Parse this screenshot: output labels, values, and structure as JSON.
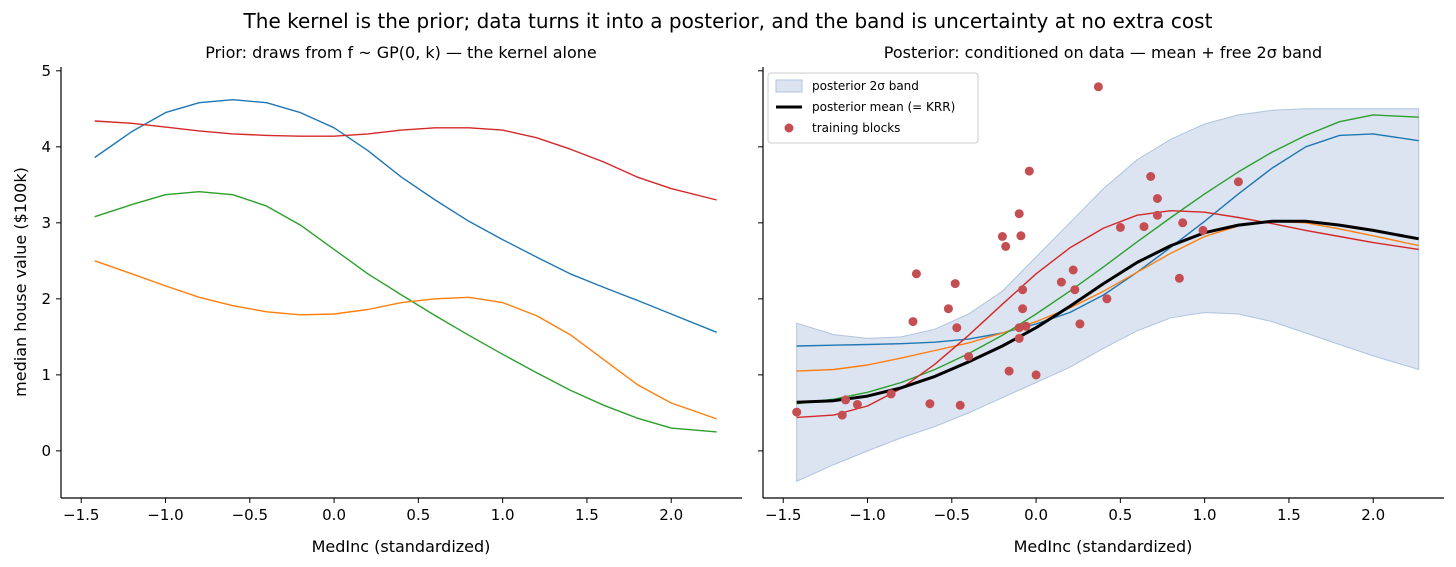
{
  "figure": {
    "suptitle": "The kernel is the prior; data turns it into a posterior, and the band is uncertainty at no extra cost",
    "colors": {
      "blue": "#1f77b4",
      "orange": "#ff7f0e",
      "green": "#2ca02c",
      "red": "#d62728",
      "mean": "#000000",
      "band": "#b0c4de",
      "points": "#c44e52"
    }
  },
  "chart_data": [
    {
      "type": "line",
      "title": "Prior: draws from f ~ GP(0, k) — the kernel alone",
      "xlabel": "MedInc (standardized)",
      "ylabel": "median house value ($100k)",
      "xlim": [
        -1.62,
        2.42
      ],
      "ylim": [
        -0.62,
        5.05
      ],
      "xticks": [
        -1.5,
        -1.0,
        -0.5,
        0.0,
        0.5,
        1.0,
        1.5,
        2.0
      ],
      "xtick_labels": [
        "−1.5",
        "−1.0",
        "−0.5",
        "0.0",
        "0.5",
        "1.0",
        "1.5",
        "2.0"
      ],
      "yticks": [
        0,
        1,
        2,
        3,
        4,
        5
      ],
      "ytick_labels": [
        "0",
        "1",
        "2",
        "3",
        "4",
        "5"
      ],
      "grid": false,
      "series": [
        {
          "color": "blue",
          "x": [
            -1.42,
            -1.2,
            -1.0,
            -0.8,
            -0.6,
            -0.4,
            -0.2,
            0.0,
            0.2,
            0.4,
            0.6,
            0.8,
            1.0,
            1.2,
            1.4,
            1.6,
            1.8,
            2.0,
            2.27
          ],
          "y": [
            3.86,
            4.2,
            4.45,
            4.58,
            4.62,
            4.58,
            4.45,
            4.25,
            3.95,
            3.6,
            3.3,
            3.02,
            2.78,
            2.55,
            2.33,
            2.15,
            1.98,
            1.8,
            1.56
          ]
        },
        {
          "color": "red",
          "x": [
            -1.42,
            -1.2,
            -1.0,
            -0.8,
            -0.6,
            -0.4,
            -0.2,
            0.0,
            0.2,
            0.4,
            0.6,
            0.8,
            1.0,
            1.2,
            1.4,
            1.6,
            1.8,
            2.0,
            2.27
          ],
          "y": [
            4.34,
            4.31,
            4.26,
            4.21,
            4.17,
            4.15,
            4.14,
            4.14,
            4.17,
            4.22,
            4.25,
            4.25,
            4.22,
            4.12,
            3.97,
            3.8,
            3.6,
            3.45,
            3.3
          ]
        },
        {
          "color": "green",
          "x": [
            -1.42,
            -1.2,
            -1.0,
            -0.8,
            -0.6,
            -0.4,
            -0.2,
            0.0,
            0.2,
            0.4,
            0.6,
            0.8,
            1.0,
            1.2,
            1.4,
            1.6,
            1.8,
            2.0,
            2.27
          ],
          "y": [
            3.08,
            3.24,
            3.37,
            3.41,
            3.37,
            3.22,
            2.97,
            2.65,
            2.33,
            2.05,
            1.78,
            1.52,
            1.27,
            1.03,
            0.8,
            0.6,
            0.43,
            0.3,
            0.25
          ]
        },
        {
          "color": "orange",
          "x": [
            -1.42,
            -1.2,
            -1.0,
            -0.8,
            -0.6,
            -0.4,
            -0.2,
            0.0,
            0.2,
            0.4,
            0.6,
            0.8,
            1.0,
            1.2,
            1.4,
            1.6,
            1.8,
            2.0,
            2.27
          ],
          "y": [
            2.5,
            2.33,
            2.17,
            2.02,
            1.91,
            1.83,
            1.79,
            1.8,
            1.86,
            1.95,
            2.0,
            2.02,
            1.95,
            1.78,
            1.53,
            1.2,
            0.87,
            0.63,
            0.42
          ]
        }
      ]
    },
    {
      "type": "line",
      "title": "Posterior: conditioned on data — mean + free 2σ band",
      "xlabel": "MedInc (standardized)",
      "xlim": [
        -1.62,
        2.42
      ],
      "ylim": [
        -0.62,
        5.05
      ],
      "xticks": [
        -1.5,
        -1.0,
        -0.5,
        0.0,
        0.5,
        1.0,
        1.5,
        2.0
      ],
      "xtick_labels": [
        "−1.5",
        "−1.0",
        "−0.5",
        "0.0",
        "0.5",
        "1.0",
        "1.5",
        "2.0"
      ],
      "yticks": [
        0,
        1,
        2,
        3,
        4,
        5
      ],
      "ytick_labels": [
        "",
        "",
        "",
        "",
        "",
        ""
      ],
      "grid": false,
      "legend_position": "top-left",
      "legend": [
        {
          "kind": "band",
          "label": "posterior 2σ band"
        },
        {
          "kind": "mean",
          "label": "posterior mean (= KRR)"
        },
        {
          "kind": "points",
          "label": "training blocks"
        }
      ],
      "band": {
        "x": [
          -1.42,
          -1.2,
          -1.0,
          -0.8,
          -0.6,
          -0.4,
          -0.2,
          0.0,
          0.2,
          0.4,
          0.6,
          0.8,
          1.0,
          1.2,
          1.4,
          1.6,
          1.8,
          2.0,
          2.27
        ],
        "lower": [
          -0.4,
          -0.18,
          0.0,
          0.17,
          0.32,
          0.5,
          0.7,
          0.9,
          1.1,
          1.35,
          1.58,
          1.75,
          1.82,
          1.8,
          1.7,
          1.55,
          1.4,
          1.25,
          1.07
        ],
        "upper": [
          1.68,
          1.53,
          1.48,
          1.5,
          1.6,
          1.8,
          2.1,
          2.55,
          3.0,
          3.45,
          3.83,
          4.1,
          4.3,
          4.42,
          4.48,
          4.5,
          4.5,
          4.5,
          4.5
        ]
      },
      "mean": {
        "x": [
          -1.42,
          -1.2,
          -1.0,
          -0.8,
          -0.6,
          -0.4,
          -0.2,
          0.0,
          0.2,
          0.4,
          0.6,
          0.8,
          1.0,
          1.2,
          1.4,
          1.6,
          1.8,
          2.0,
          2.27
        ],
        "y": [
          0.64,
          0.66,
          0.72,
          0.83,
          0.98,
          1.17,
          1.38,
          1.62,
          1.9,
          2.2,
          2.48,
          2.7,
          2.87,
          2.97,
          3.02,
          3.02,
          2.97,
          2.9,
          2.79
        ]
      },
      "series": [
        {
          "color": "blue",
          "x": [
            -1.42,
            -1.2,
            -1.0,
            -0.8,
            -0.6,
            -0.4,
            -0.2,
            0.0,
            0.2,
            0.4,
            0.6,
            0.8,
            1.0,
            1.2,
            1.4,
            1.6,
            1.8,
            2.0,
            2.27
          ],
          "y": [
            1.38,
            1.39,
            1.4,
            1.41,
            1.43,
            1.47,
            1.55,
            1.67,
            1.82,
            2.05,
            2.35,
            2.68,
            3.02,
            3.38,
            3.72,
            4.0,
            4.15,
            4.17,
            4.08
          ]
        },
        {
          "color": "orange",
          "x": [
            -1.42,
            -1.2,
            -1.0,
            -0.8,
            -0.6,
            -0.4,
            -0.2,
            0.0,
            0.2,
            0.4,
            0.6,
            0.8,
            1.0,
            1.2,
            1.4,
            1.6,
            1.8,
            2.0,
            2.27
          ],
          "y": [
            1.05,
            1.07,
            1.13,
            1.22,
            1.32,
            1.42,
            1.55,
            1.7,
            1.88,
            2.1,
            2.35,
            2.6,
            2.82,
            2.96,
            3.02,
            3.0,
            2.92,
            2.83,
            2.7
          ]
        },
        {
          "color": "green",
          "x": [
            -1.42,
            -1.2,
            -1.0,
            -0.8,
            -0.6,
            -0.4,
            -0.2,
            0.0,
            0.2,
            0.4,
            0.6,
            0.8,
            1.0,
            1.2,
            1.4,
            1.6,
            1.8,
            2.0,
            2.27
          ],
          "y": [
            0.62,
            0.68,
            0.77,
            0.9,
            1.07,
            1.28,
            1.52,
            1.8,
            2.1,
            2.42,
            2.75,
            3.07,
            3.38,
            3.67,
            3.93,
            4.15,
            4.33,
            4.42,
            4.39
          ]
        },
        {
          "color": "red",
          "x": [
            -1.42,
            -1.2,
            -1.0,
            -0.8,
            -0.6,
            -0.4,
            -0.2,
            0.0,
            0.2,
            0.4,
            0.6,
            0.8,
            1.0,
            1.2,
            1.4,
            1.6,
            1.8,
            2.0,
            2.27
          ],
          "y": [
            0.44,
            0.47,
            0.59,
            0.82,
            1.14,
            1.52,
            1.93,
            2.33,
            2.67,
            2.93,
            3.1,
            3.16,
            3.14,
            3.07,
            2.99,
            2.9,
            2.82,
            2.74,
            2.65
          ]
        }
      ],
      "points": {
        "x": [
          -1.42,
          -1.15,
          -1.13,
          -1.06,
          -0.86,
          -0.71,
          -0.73,
          -0.63,
          -0.52,
          -0.48,
          -0.47,
          -0.45,
          -0.4,
          -0.2,
          -0.18,
          -0.16,
          -0.1,
          -0.09,
          -0.08,
          -0.1,
          -0.1,
          -0.08,
          -0.06,
          -0.04,
          0.0,
          0.15,
          0.22,
          0.23,
          0.26,
          0.37,
          0.42,
          0.5,
          0.64,
          0.68,
          0.72,
          0.72,
          0.85,
          0.87,
          0.99,
          1.2
        ],
        "y": [
          0.51,
          0.47,
          0.67,
          0.61,
          0.75,
          2.33,
          1.7,
          0.62,
          1.87,
          2.2,
          1.62,
          0.6,
          1.24,
          2.82,
          2.69,
          1.05,
          3.12,
          2.83,
          2.12,
          1.62,
          1.48,
          1.87,
          1.64,
          3.68,
          1.0,
          2.22,
          2.38,
          2.12,
          1.67,
          4.79,
          2.0,
          2.94,
          2.95,
          3.61,
          3.32,
          3.1,
          2.27,
          3.0,
          2.9,
          3.54
        ]
      }
    }
  ]
}
